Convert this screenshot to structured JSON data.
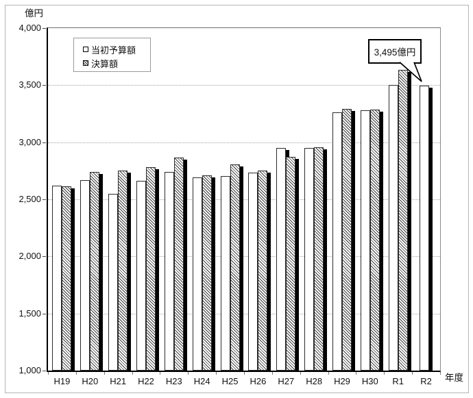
{
  "chart_data": {
    "type": "bar",
    "unit_label": "億円",
    "xlabel": "年度",
    "categories": [
      "H19",
      "H20",
      "H21",
      "H22",
      "H23",
      "H24",
      "H25",
      "H26",
      "H27",
      "H28",
      "H29",
      "H30",
      "R1",
      "R2"
    ],
    "series": [
      {
        "name": "当初予算額",
        "style": "plain-white",
        "values": [
          2620,
          2670,
          2550,
          2665,
          2740,
          2695,
          2705,
          2735,
          2950,
          2950,
          3260,
          3280,
          3500,
          3495
        ]
      },
      {
        "name": "決算額",
        "style": "diagonal-hatch",
        "values": [
          2615,
          2740,
          2755,
          2780,
          2865,
          2710,
          2805,
          2750,
          2870,
          2955,
          3290,
          3285,
          3635,
          null
        ]
      }
    ],
    "ylim": [
      1000,
      4000
    ],
    "ytick_step": 500,
    "ytick_labels": [
      "4,000",
      "3,500",
      "3,000",
      "2,500",
      "2,000",
      "1,500",
      "1,000"
    ],
    "grid": "horizontal-dotted",
    "legend_position": "top-left-inside",
    "annotation": {
      "text": "3,495億円",
      "target_category": "R2",
      "target_series": "当初予算額"
    }
  },
  "colors": {
    "background": "#ffffff",
    "bar_fill": "#ffffff",
    "bar_outline": "#2b2b2b",
    "hatch_line": "#3b3b3b",
    "bar_shadow": "#000000",
    "gridline": "#a3a3a3",
    "axis": "#000000",
    "text": "#111111"
  }
}
